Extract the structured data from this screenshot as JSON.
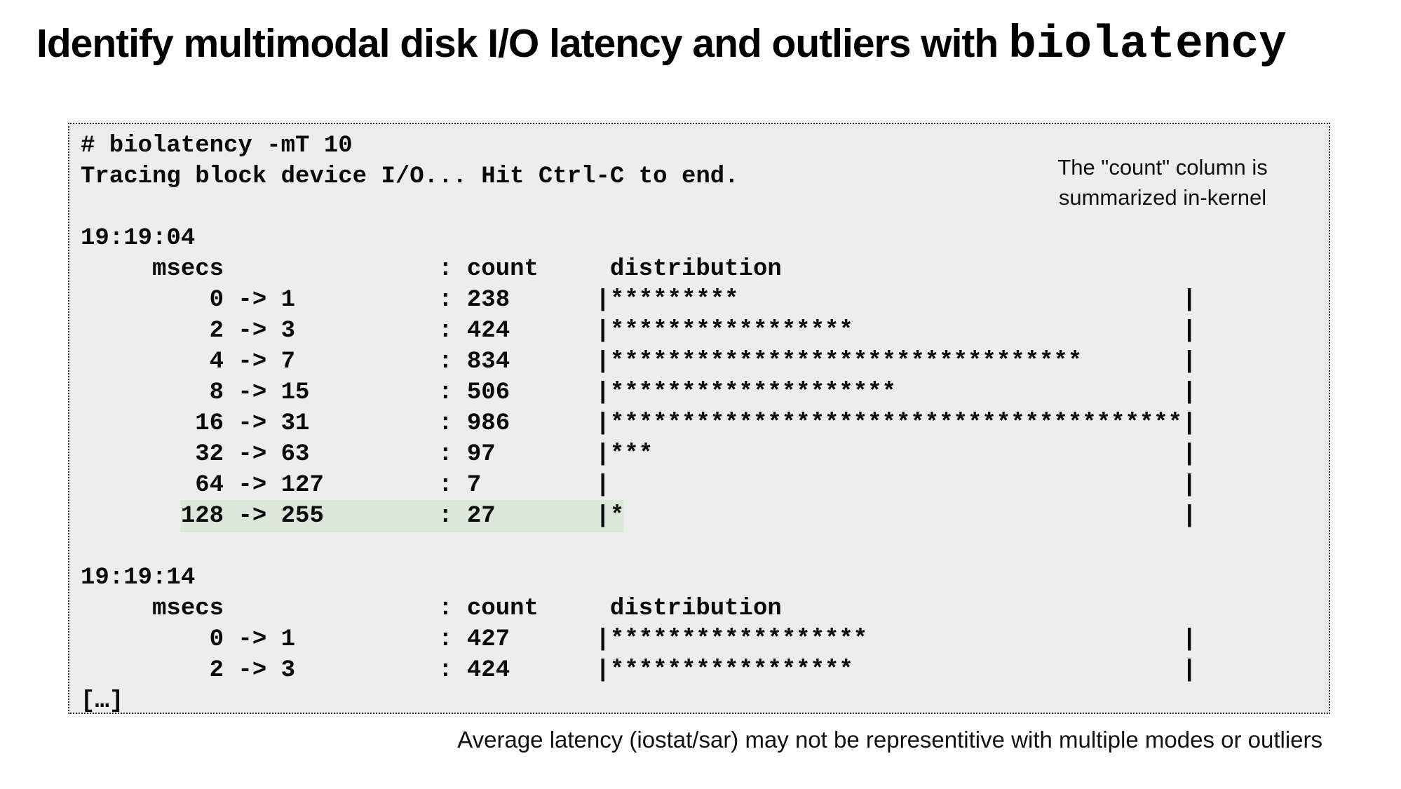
{
  "title": {
    "text": "Identify multimodal disk I/O latency and outliers with ",
    "code": "biolatency"
  },
  "annotation": {
    "line1": "The \"count\" column is",
    "line2": "summarized in-kernel"
  },
  "caption": "Average latency (iostat/sar) may not be representitive with multiple modes or outliers",
  "colors": {
    "box_bg": "#ededed",
    "box_border": "#2b2b2b",
    "highlight": "#dce6d9",
    "text": "#0a0a0a"
  },
  "terminal": {
    "command": "# biolatency -mT 10",
    "status": "Tracing block device I/O... Hit Ctrl-C to end.",
    "lines": [
      "# biolatency -mT 10",
      "Tracing block device I/O... Hit Ctrl-C to end.",
      "",
      "19:19:04",
      "     msecs               : count     distribution",
      "         0 -> 1          : 238      |*********                               |",
      "         2 -> 3          : 424      |*****************                       |",
      "         4 -> 7          : 834      |*********************************       |",
      "         8 -> 15         : 506      |********************                    |",
      "        16 -> 31         : 986      |****************************************|",
      "        32 -> 63         : 97       |***                                     |",
      "        64 -> 127        : 7        |                                        |",
      {
        "pre": "       ",
        "hl": "128 -> 255        : 27       |*",
        "post": "                                       |"
      },
      "",
      "19:19:14",
      "     msecs               : count     distribution",
      "         0 -> 1          : 427      |******************                      |",
      "         2 -> 3          : 424      |*****************                       |",
      "[…]"
    ]
  },
  "chart_data": [
    {
      "type": "table",
      "title": "19:19:04",
      "unit": "msecs",
      "columns": [
        "msecs",
        "count",
        "distribution"
      ],
      "rows": [
        {
          "range_from": 0,
          "range_to": 1,
          "count": 238,
          "stars": 9
        },
        {
          "range_from": 2,
          "range_to": 3,
          "count": 424,
          "stars": 17
        },
        {
          "range_from": 4,
          "range_to": 7,
          "count": 834,
          "stars": 33
        },
        {
          "range_from": 8,
          "range_to": 15,
          "count": 506,
          "stars": 20
        },
        {
          "range_from": 16,
          "range_to": 31,
          "count": 986,
          "stars": 40
        },
        {
          "range_from": 32,
          "range_to": 63,
          "count": 97,
          "stars": 3
        },
        {
          "range_from": 64,
          "range_to": 127,
          "count": 7,
          "stars": 0
        },
        {
          "range_from": 128,
          "range_to": 255,
          "count": 27,
          "stars": 1,
          "highlighted": true
        }
      ]
    },
    {
      "type": "table",
      "title": "19:19:14",
      "unit": "msecs",
      "columns": [
        "msecs",
        "count",
        "distribution"
      ],
      "rows": [
        {
          "range_from": 0,
          "range_to": 1,
          "count": 427,
          "stars": 18
        },
        {
          "range_from": 2,
          "range_to": 3,
          "count": 424,
          "stars": 17
        }
      ]
    }
  ]
}
